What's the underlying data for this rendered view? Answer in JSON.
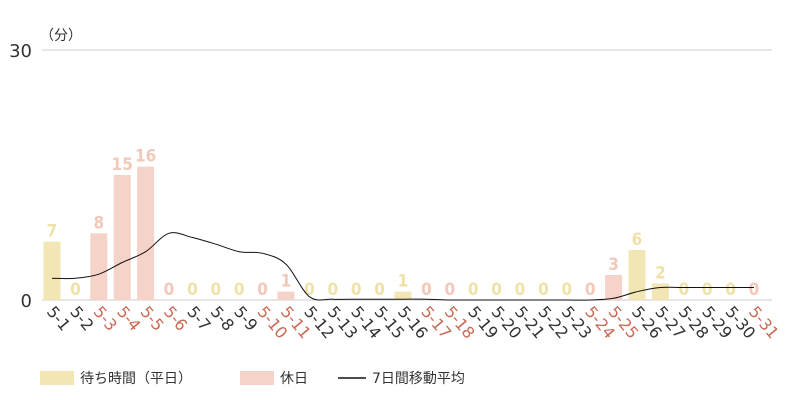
{
  "chart_data": {
    "type": "bar",
    "unit_label": "（分）",
    "ylim": [
      0,
      30
    ],
    "yticks": [
      0,
      30
    ],
    "categories": [
      "5-1",
      "5-2",
      "5-3",
      "5-4",
      "5-5",
      "5-6",
      "5-7",
      "5-8",
      "5-9",
      "5-10",
      "5-11",
      "5-12",
      "5-13",
      "5-14",
      "5-15",
      "5-16",
      "5-17",
      "5-18",
      "5-19",
      "5-20",
      "5-21",
      "5-22",
      "5-23",
      "5-24",
      "5-25",
      "5-26",
      "5-27",
      "5-28",
      "5-29",
      "5-30",
      "5-31"
    ],
    "day_type": [
      "weekday",
      "weekday",
      "holiday",
      "holiday",
      "holiday",
      "holiday",
      "weekday",
      "weekday",
      "weekday",
      "holiday",
      "holiday",
      "weekday",
      "weekday",
      "weekday",
      "weekday",
      "weekday",
      "holiday",
      "holiday",
      "weekday",
      "weekday",
      "weekday",
      "weekday",
      "weekday",
      "holiday",
      "holiday",
      "weekday",
      "weekday",
      "weekday",
      "weekday",
      "weekday",
      "holiday"
    ],
    "values": [
      7,
      0,
      8,
      15,
      16,
      0,
      0,
      0,
      0,
      0,
      1,
      0,
      0,
      0,
      0,
      1,
      0,
      0,
      0,
      0,
      0,
      0,
      0,
      0,
      3,
      6,
      2,
      0,
      0,
      0,
      0
    ],
    "series": [
      {
        "name": "待ち時間（平日）",
        "color": "#f3e6b5",
        "label_color": "#efe2a8"
      },
      {
        "name": "休日",
        "color": "#f6d3c8",
        "label_color": "#f2c8b8"
      },
      {
        "name": "7日間移動平均",
        "color": "#111111",
        "values": [
          2.6,
          2.6,
          3.1,
          4.5,
          5.8,
          8.0,
          7.5,
          6.7,
          5.8,
          5.6,
          4.3,
          0.4,
          0.1,
          0.1,
          0.1,
          0.1,
          0.1,
          0,
          0,
          0,
          0,
          0,
          0,
          0,
          0.2,
          1.0,
          1.5,
          1.5,
          1.5,
          1.5,
          1.5
        ]
      }
    ],
    "tick_colors": {
      "weekday": "#333333",
      "holiday": "#c96a55"
    },
    "grid_color": "#cccccc"
  }
}
